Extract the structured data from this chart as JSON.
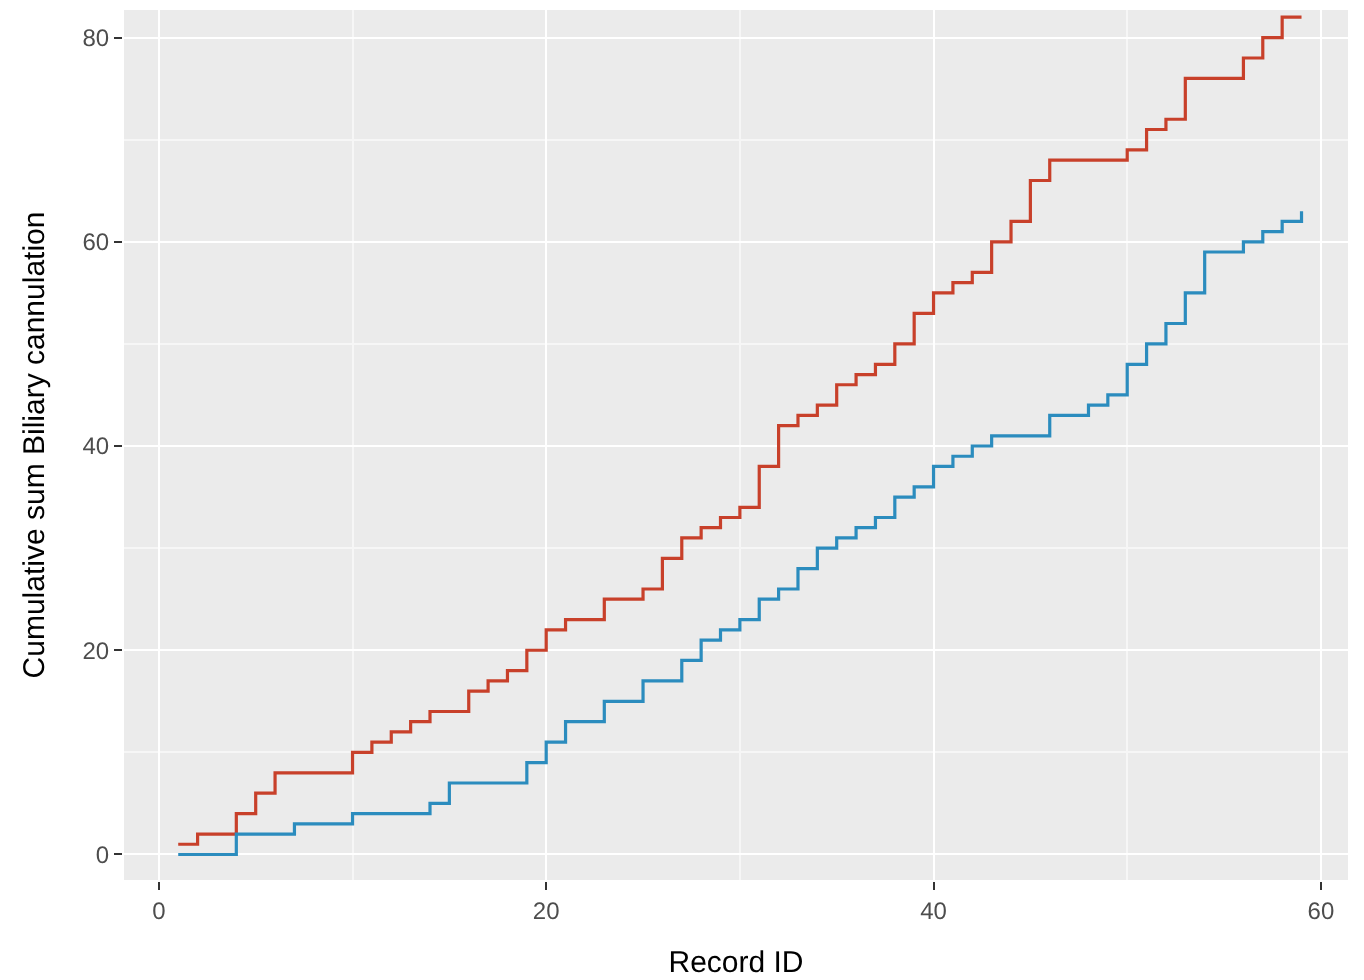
{
  "chart_data": {
    "type": "step",
    "xlabel": "Record ID",
    "ylabel": "Cumulative sum Biliary cannulation",
    "x": [
      1,
      2,
      3,
      4,
      5,
      6,
      7,
      8,
      9,
      10,
      11,
      12,
      13,
      14,
      15,
      16,
      17,
      18,
      19,
      20,
      21,
      22,
      23,
      24,
      25,
      26,
      27,
      28,
      29,
      30,
      31,
      32,
      33,
      34,
      35,
      36,
      37,
      38,
      39,
      40,
      41,
      42,
      43,
      44,
      45,
      46,
      47,
      48,
      49,
      50,
      51,
      52,
      53,
      54,
      55,
      56,
      57,
      58,
      59
    ],
    "series": [
      {
        "color": "#c8402a",
        "values": [
          1,
          2,
          2,
          4,
          6,
          8,
          8,
          8,
          8,
          10,
          11,
          12,
          13,
          14,
          14,
          16,
          17,
          18,
          20,
          22,
          23,
          23,
          25,
          25,
          26,
          29,
          31,
          32,
          33,
          34,
          38,
          42,
          43,
          44,
          46,
          47,
          48,
          50,
          53,
          55,
          56,
          57,
          60,
          62,
          66,
          68,
          68,
          68,
          68,
          69,
          71,
          72,
          76,
          76,
          76,
          78,
          80,
          82,
          82
        ]
      },
      {
        "color": "#2b8cbe",
        "values": [
          0,
          0,
          0,
          2,
          2,
          2,
          3,
          3,
          3,
          4,
          4,
          4,
          4,
          5,
          7,
          7,
          7,
          7,
          9,
          11,
          13,
          13,
          15,
          15,
          17,
          17,
          19,
          21,
          22,
          23,
          25,
          26,
          28,
          30,
          31,
          32,
          33,
          35,
          36,
          38,
          39,
          40,
          41,
          41,
          41,
          43,
          43,
          44,
          45,
          48,
          50,
          52,
          55,
          59,
          59,
          60,
          61,
          62,
          63
        ]
      }
    ],
    "xlim": [
      -1.8,
      61.4
    ],
    "ylim": [
      -2.5,
      82.7
    ],
    "xticks": [
      0,
      20,
      40,
      60
    ],
    "yticks": [
      0,
      20,
      40,
      60,
      80
    ],
    "grid": true
  }
}
